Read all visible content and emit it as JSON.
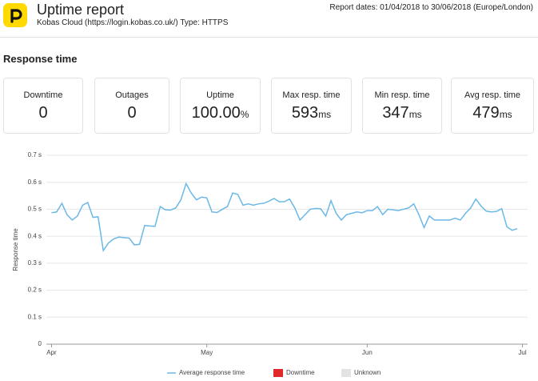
{
  "header": {
    "title": "Uptime report",
    "subtitle": "Kobas Cloud (https://login.kobas.co.uk/) Type: HTTPS",
    "report_dates": "Report dates: 01/04/2018 to 30/06/2018 (Europe/London)"
  },
  "section_title": "Response time",
  "stats": [
    {
      "label": "Downtime",
      "value": 0
    },
    {
      "label": "Outages",
      "value": 0
    },
    {
      "label": "Uptime",
      "value": "100.00",
      "unit": "%"
    },
    {
      "label": "Max resp. time",
      "value": 593,
      "unit": "ms"
    },
    {
      "label": "Min resp. time",
      "value": 347,
      "unit": "ms"
    },
    {
      "label": "Avg resp. time",
      "value": 479,
      "unit": "ms"
    }
  ],
  "chart_data": {
    "type": "line",
    "y_label": "Response time",
    "x": [
      0,
      1,
      2,
      3,
      4,
      5,
      6,
      7,
      8,
      9,
      10,
      11,
      12,
      13,
      14,
      15,
      16,
      17,
      18,
      19,
      20,
      21,
      22,
      23,
      24,
      25,
      26,
      27,
      28,
      29,
      30,
      31,
      32,
      33,
      34,
      35,
      36,
      37,
      38,
      39,
      40,
      41,
      42,
      43,
      44,
      45,
      46,
      47,
      48,
      49,
      50,
      51,
      52,
      53,
      54,
      55,
      56,
      57,
      58,
      59,
      60,
      61,
      62,
      63,
      64,
      65,
      66,
      67,
      68,
      69,
      70,
      71,
      72,
      73,
      74,
      75,
      76,
      77,
      78,
      79,
      80,
      81,
      82,
      83,
      84,
      85,
      86,
      87,
      88,
      89,
      90
    ],
    "xlim": [
      -1,
      92
    ],
    "xticks": [
      {
        "value": 0,
        "label": "Apr"
      },
      {
        "value": 30,
        "label": "May"
      },
      {
        "value": 61,
        "label": "Jun"
      },
      {
        "value": 91,
        "label": "Jul"
      }
    ],
    "ylim": [
      0,
      0.7
    ],
    "yticks": [
      {
        "value": 0,
        "label": "0"
      },
      {
        "value": 0.1,
        "label": "0.1 s"
      },
      {
        "value": 0.2,
        "label": "0.2 s"
      },
      {
        "value": 0.3,
        "label": "0.3 s"
      },
      {
        "value": 0.4,
        "label": "0.4 s"
      },
      {
        "value": 0.5,
        "label": "0.5 s"
      },
      {
        "value": 0.6,
        "label": "0.6 s"
      },
      {
        "value": 0.7,
        "label": "0.7 s"
      }
    ],
    "grid": true,
    "series": [
      {
        "name": "Average response time",
        "color": "#6cb8e6",
        "values": [
          0.487,
          0.49,
          0.522,
          0.48,
          0.46,
          0.475,
          0.515,
          0.525,
          0.47,
          0.472,
          0.347,
          0.375,
          0.39,
          0.397,
          0.395,
          0.393,
          0.368,
          0.37,
          0.44,
          0.438,
          0.437,
          0.51,
          0.498,
          0.497,
          0.505,
          0.535,
          0.595,
          0.56,
          0.535,
          0.545,
          0.542,
          0.49,
          0.488,
          0.5,
          0.51,
          0.56,
          0.555,
          0.515,
          0.52,
          0.515,
          0.52,
          0.522,
          0.53,
          0.54,
          0.528,
          0.528,
          0.538,
          0.505,
          0.46,
          0.48,
          0.5,
          0.503,
          0.502,
          0.475,
          0.532,
          0.485,
          0.46,
          0.48,
          0.485,
          0.49,
          0.487,
          0.495,
          0.495,
          0.51,
          0.48,
          0.5,
          0.498,
          0.495,
          0.5,
          0.505,
          0.52,
          0.48,
          0.432,
          0.475,
          0.46,
          0.46,
          0.46,
          0.46,
          0.467,
          0.46,
          0.485,
          0.505,
          0.538,
          0.512,
          0.493,
          0.49,
          0.492,
          0.502,
          0.435,
          0.422,
          0.428
        ]
      }
    ],
    "extra_legend": [
      {
        "name": "Downtime",
        "color": "#e02a2a"
      },
      {
        "name": "Unknown",
        "color": "#e3e3e3"
      }
    ]
  }
}
